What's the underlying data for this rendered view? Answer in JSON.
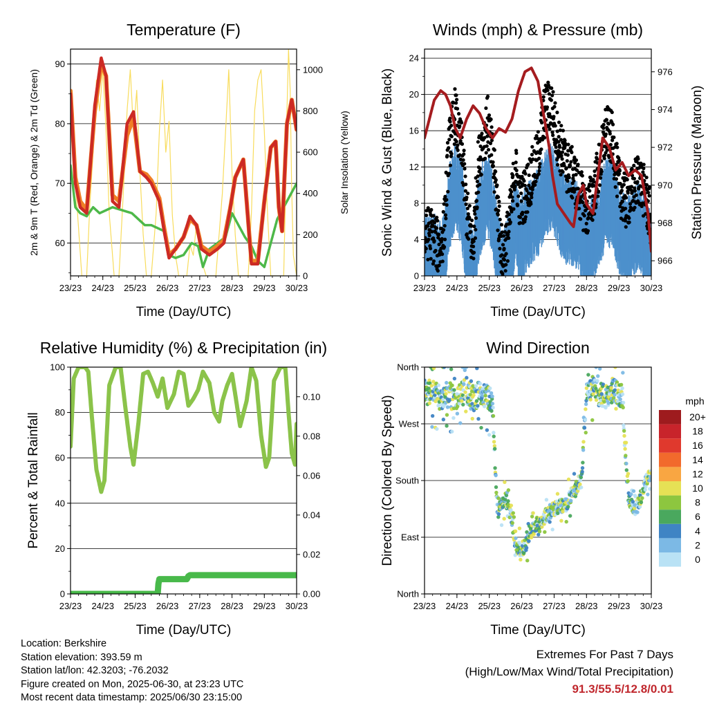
{
  "chart_data": [
    {
      "type": "line",
      "title": "Temperature (F)",
      "xlabel": "Time (Day/UTC)",
      "ylabel": "2m & 9m T (Red, Orange) & 2m Td (Green)",
      "y2label": "Solar Insolation (Yellow)",
      "x_ticks": [
        "23/23",
        "24/23",
        "25/23",
        "26/23",
        "27/23",
        "28/23",
        "29/23",
        "30/23"
      ],
      "y_ticks": [
        60,
        70,
        80,
        90
      ],
      "y2_ticks": [
        0,
        200,
        400,
        600,
        800,
        1000
      ],
      "ylim": [
        54.5,
        92.5
      ],
      "y2lim": [
        0,
        1100
      ],
      "grid": "horizontal",
      "series": [
        {
          "name": "2m T",
          "color": "#cc2a24",
          "x": [
            0,
            0.15,
            0.3,
            0.5,
            0.75,
            0.95,
            1.1,
            1.3,
            1.5,
            1.75,
            1.95,
            2.15,
            2.35,
            2.5,
            2.75,
            2.9,
            3.05,
            3.25,
            3.5,
            3.7,
            3.9,
            4.05,
            4.3,
            4.55,
            4.75,
            4.95,
            5.1,
            5.35,
            5.6,
            5.8,
            6.0,
            6.2,
            6.35,
            6.45,
            6.55,
            6.7,
            6.85,
            7.0
          ],
          "values": [
            85,
            70,
            66,
            65,
            83,
            91,
            88,
            67,
            66,
            80,
            82,
            72,
            71,
            70,
            67,
            62,
            57.5,
            59,
            61,
            64.5,
            63,
            59,
            58,
            59,
            60,
            66,
            71,
            74,
            56.5,
            56.5,
            67,
            76,
            77,
            66,
            62,
            80,
            84,
            79
          ]
        },
        {
          "name": "9m T",
          "color": "#f07f26",
          "x": [
            0,
            0.15,
            0.3,
            0.5,
            0.75,
            0.95,
            1.1,
            1.3,
            1.5,
            1.75,
            1.95,
            2.15,
            2.35,
            2.5,
            2.75,
            2.9,
            3.05,
            3.25,
            3.5,
            3.7,
            3.9,
            4.05,
            4.3,
            4.55,
            4.75,
            4.95,
            5.1,
            5.35,
            5.6,
            5.8,
            6.0,
            6.2,
            6.35,
            6.45,
            6.55,
            6.7,
            6.85,
            7.0
          ],
          "values": [
            85.5,
            71,
            67,
            65.5,
            82,
            90,
            88,
            68,
            67,
            78,
            81,
            72,
            71.5,
            70.5,
            67.5,
            62.5,
            58,
            59,
            61,
            64,
            63,
            59.5,
            58.5,
            59.5,
            60.5,
            66,
            71,
            74,
            57,
            57,
            67,
            76,
            77,
            66,
            62,
            80,
            84,
            79
          ]
        },
        {
          "name": "2m Td",
          "color": "#4db849",
          "x": [
            0,
            0.15,
            0.3,
            0.5,
            0.7,
            0.9,
            1.1,
            1.3,
            1.6,
            1.9,
            2.1,
            2.3,
            2.5,
            2.7,
            2.9,
            3.05,
            3.25,
            3.5,
            3.75,
            3.95,
            4.1,
            4.3,
            4.55,
            4.8,
            5.0,
            5.2,
            5.4,
            5.6,
            5.8,
            6.0,
            6.2,
            6.4,
            6.6,
            6.8,
            7.0
          ],
          "values": [
            73,
            66,
            65,
            64.5,
            66,
            65,
            65.5,
            66,
            65.5,
            65,
            64,
            63,
            63,
            62.5,
            62,
            58,
            57.5,
            58,
            60,
            59.5,
            56,
            59,
            60,
            61,
            65,
            63,
            61,
            59.5,
            57,
            56,
            60,
            64,
            66,
            68,
            70
          ]
        },
        {
          "name": "Solar",
          "color": "#f8dc5c",
          "axis": "y2",
          "x": [
            0,
            0.35,
            0.5,
            0.6,
            0.7,
            0.8,
            0.9,
            1.0,
            1.1,
            1.2,
            1.35,
            1.5,
            1.65,
            1.75,
            1.85,
            1.95,
            2.05,
            2.15,
            2.25,
            2.35,
            2.5,
            2.65,
            2.75,
            2.85,
            2.95,
            3.05,
            3.15,
            3.25,
            3.35,
            3.45,
            3.6,
            3.7,
            3.8,
            3.9,
            4.0,
            4.1,
            4.2,
            4.35,
            4.5,
            4.6,
            4.7,
            4.8,
            4.9,
            5.0,
            5.1,
            5.2,
            5.35,
            5.5,
            5.6,
            5.7,
            5.8,
            5.9,
            6.0,
            6.1,
            6.2,
            6.35,
            6.5,
            6.6,
            6.65,
            6.7,
            6.75,
            6.8,
            6.85,
            6.9,
            7.0
          ],
          "values": [
            800,
            0,
            0,
            350,
            600,
            950,
            800,
            1000,
            700,
            300,
            0,
            0,
            450,
            800,
            1000,
            700,
            900,
            500,
            200,
            0,
            0,
            300,
            700,
            950,
            600,
            750,
            300,
            100,
            0,
            0,
            0,
            150,
            100,
            250,
            100,
            50,
            0,
            0,
            0,
            200,
            400,
            700,
            1000,
            500,
            200,
            0,
            0,
            0,
            300,
            800,
            950,
            1000,
            700,
            300,
            0,
            0,
            0,
            0,
            350,
            800,
            1100,
            900,
            400,
            100,
            0
          ]
        }
      ]
    },
    {
      "type": "scatter",
      "title": "Winds (mph) & Pressure (mb)",
      "xlabel": "Time (Day/UTC)",
      "ylabel": "Sonic Wind & Gust (Blue, Black)",
      "y2label": "Station Pressure (Maroon)",
      "x_ticks": [
        "23/23",
        "24/23",
        "25/23",
        "26/23",
        "27/23",
        "28/23",
        "29/23",
        "30/23"
      ],
      "y_ticks": [
        0,
        4,
        8,
        12,
        16,
        20,
        24
      ],
      "y2_ticks": [
        966,
        968,
        970,
        972,
        974,
        976
      ],
      "ylim": [
        0,
        25
      ],
      "y2lim": [
        965.2,
        977.2
      ],
      "grid": "horizontal",
      "series": [
        {
          "name": "Station Pressure",
          "color": "#a51c1f",
          "type": "line",
          "axis": "y2",
          "x": [
            0,
            0.15,
            0.3,
            0.5,
            0.65,
            0.8,
            0.95,
            1.1,
            1.3,
            1.5,
            1.7,
            1.9,
            2.1,
            2.3,
            2.5,
            2.7,
            2.9,
            3.1,
            3.3,
            3.5,
            3.7,
            3.85,
            3.95,
            4.1,
            4.3,
            4.5,
            4.6,
            4.75,
            4.9,
            5.0,
            5.2,
            5.35,
            5.5,
            5.7,
            5.9,
            6.1,
            6.3,
            6.5,
            6.7,
            6.9,
            7.0
          ],
          "values": [
            972.5,
            973.5,
            974.5,
            975.0,
            974.8,
            974.2,
            973.0,
            972.5,
            973.5,
            974.2,
            973.8,
            973.0,
            972.5,
            973.0,
            972.8,
            973.5,
            975.0,
            976.0,
            976.2,
            975.5,
            973.5,
            972.0,
            970.5,
            969.0,
            968.5,
            968.0,
            967.8,
            969.5,
            970.0,
            969.0,
            968.5,
            970.5,
            972.5,
            972.0,
            970.8,
            971.2,
            970.5,
            970.8,
            970.5,
            968.5,
            966.5
          ]
        },
        {
          "name": "Gust",
          "color": "#000000",
          "x": [
            0,
            0.15,
            0.3,
            0.45,
            0.6,
            0.75,
            0.85,
            0.95,
            1.05,
            1.15,
            1.3,
            1.5,
            1.65,
            1.8,
            1.95,
            2.1,
            2.25,
            2.4,
            2.6,
            2.8,
            2.95,
            3.1,
            3.3,
            3.5,
            3.7,
            3.9,
            4.05,
            4.2,
            4.4,
            4.6,
            4.8,
            5.0,
            5.2,
            5.4,
            5.6,
            5.8,
            6.0,
            6.2,
            6.4,
            6.6,
            6.8,
            7.0
          ],
          "values": [
            4,
            5,
            4,
            3,
            5,
            14,
            16,
            18,
            15,
            14,
            7,
            3,
            12,
            15,
            17,
            13,
            8,
            2,
            5,
            12,
            8,
            9,
            11,
            13,
            18,
            19,
            16,
            14,
            12,
            11,
            9,
            7,
            9,
            12,
            16,
            15,
            10,
            8,
            9,
            11,
            9,
            6
          ]
        },
        {
          "name": "Sonic Wind",
          "color": "#4d90cc",
          "x": [
            0,
            0.15,
            0.3,
            0.45,
            0.6,
            0.75,
            0.85,
            0.95,
            1.05,
            1.15,
            1.3,
            1.5,
            1.65,
            1.8,
            1.95,
            2.1,
            2.25,
            2.4,
            2.6,
            2.8,
            2.95,
            3.1,
            3.3,
            3.5,
            3.7,
            3.9,
            4.05,
            4.2,
            4.4,
            4.6,
            4.8,
            5.0,
            5.2,
            5.4,
            5.6,
            5.8,
            6.0,
            6.2,
            6.4,
            6.6,
            6.8,
            7.0
          ],
          "values": [
            3,
            3,
            3,
            2,
            3,
            8,
            10,
            11,
            10,
            9,
            4,
            1,
            7,
            9,
            10,
            8,
            4,
            1,
            3,
            7,
            5,
            6,
            7,
            8,
            10,
            11,
            10,
            8,
            7,
            7,
            6,
            4,
            5,
            7,
            9,
            9,
            6,
            5,
            5,
            7,
            5,
            3
          ]
        }
      ]
    },
    {
      "type": "line",
      "title": "Relative Humidity (%) & Precipitation (in)",
      "xlabel": "Time (Day/UTC)",
      "ylabel": "Percent & Total Rainfall",
      "x_ticks": [
        "23/23",
        "24/23",
        "25/23",
        "26/23",
        "27/23",
        "28/23",
        "29/23",
        "30/23"
      ],
      "y_ticks": [
        0,
        20,
        40,
        60,
        80,
        100
      ],
      "y2_ticks": [
        "0.00",
        "0.02",
        "0.04",
        "0.06",
        "0.08",
        "0.10"
      ],
      "ylim": [
        0,
        100
      ],
      "y2lim": [
        0,
        0.115
      ],
      "grid": "horizontal",
      "series": [
        {
          "name": "Relative Humidity",
          "color": "#8bc34a",
          "x": [
            0,
            0.1,
            0.25,
            0.45,
            0.55,
            0.65,
            0.8,
            0.95,
            1.05,
            1.2,
            1.4,
            1.55,
            1.7,
            1.85,
            1.95,
            2.1,
            2.25,
            2.4,
            2.55,
            2.7,
            2.85,
            3.0,
            3.2,
            3.35,
            3.5,
            3.65,
            3.8,
            3.95,
            4.1,
            4.3,
            4.45,
            4.6,
            4.7,
            4.85,
            5.0,
            5.1,
            5.25,
            5.45,
            5.6,
            5.75,
            5.9,
            6.05,
            6.15,
            6.3,
            6.5,
            6.65,
            6.75,
            6.85,
            6.95,
            7.0
          ],
          "values": [
            65,
            95,
            100,
            100,
            98,
            80,
            55,
            45,
            50,
            92,
            100,
            100,
            82,
            65,
            57,
            75,
            97,
            98,
            93,
            87,
            95,
            82,
            88,
            98,
            97,
            83,
            86,
            90,
            98,
            93,
            80,
            76,
            85,
            92,
            97,
            88,
            74,
            85,
            100,
            94,
            70,
            56,
            60,
            94,
            100,
            100,
            80,
            62,
            57,
            75
          ]
        },
        {
          "name": "Precipitation",
          "color": "#48b94a",
          "axis": "y2",
          "x": [
            0,
            2.7,
            2.72,
            2.75,
            3.0,
            3.1,
            3.6,
            3.65,
            3.7,
            7.0
          ],
          "values": [
            0,
            0,
            0.005,
            0.0075,
            0.0075,
            0.0075,
            0.0075,
            0.009,
            0.0095,
            0.0095
          ]
        }
      ]
    },
    {
      "type": "scatter",
      "title": "Wind Direction",
      "xlabel": "Time (Day/UTC)",
      "ylabel": "Direction (Colored By Speed)",
      "x_ticks": [
        "23/23",
        "24/23",
        "25/23",
        "26/23",
        "27/23",
        "28/23",
        "29/23",
        "30/23"
      ],
      "y_ticks": [
        "North",
        "East",
        "South",
        "West",
        "North"
      ],
      "ylim": [
        0,
        360
      ],
      "grid": "horizontal",
      "legend": {
        "title": "mph",
        "placement": "right",
        "labels": [
          "20+",
          "18",
          "16",
          "14",
          "12",
          "10",
          "8",
          "6",
          "4",
          "2",
          "0"
        ],
        "colors": [
          "#9e1b1e",
          "#c8242b",
          "#e0392d",
          "#f26a2c",
          "#f9a642",
          "#e6e155",
          "#8dc63f",
          "#4aa85e",
          "#3f84c4",
          "#7cb9e5",
          "#b9e2f5"
        ]
      },
      "series": [
        {
          "name": "Wind Direction",
          "color": "#3f84c4",
          "x": [
            0.1,
            0.3,
            0.5,
            0.7,
            0.9,
            1.0,
            1.15,
            1.3,
            1.5,
            1.7,
            1.85,
            1.95,
            2.1,
            2.25,
            2.5,
            2.7,
            2.8,
            2.95,
            3.1,
            3.25,
            3.45,
            3.6,
            3.8,
            4.0,
            4.2,
            4.35,
            4.5,
            4.6,
            4.75,
            4.85,
            5.0,
            5.2,
            5.35,
            5.5,
            5.65,
            5.8,
            5.95,
            6.1,
            6.3,
            6.5,
            6.7,
            6.85,
            6.95
          ],
          "values": [
            320,
            320,
            310,
            320,
            310,
            305,
            320,
            320,
            310,
            318,
            320,
            315,
            300,
            130,
            150,
            120,
            80,
            70,
            75,
            95,
            110,
            115,
            128,
            135,
            140,
            140,
            155,
            160,
            175,
            185,
            330,
            325,
            320,
            315,
            310,
            325,
            320,
            315,
            150,
            130,
            155,
            180,
            190
          ]
        }
      ]
    }
  ],
  "info": {
    "location": "Location: Berkshire",
    "elevation": "Station elevation: 393.59 m",
    "latlon": "Station lat/lon: 42.3203; -76.2032",
    "created": "Figure created on Mon, 2025-06-30, at 23:23 UTC",
    "recent": "Most recent data timestamp: 2025/06/30 23:15:00"
  },
  "extremes": {
    "line1": "Extremes For Past 7 Days",
    "line2": "(High/Low/Max Wind/Total Precipitation)",
    "values": "91.3/55.5/12.8/0.01"
  }
}
